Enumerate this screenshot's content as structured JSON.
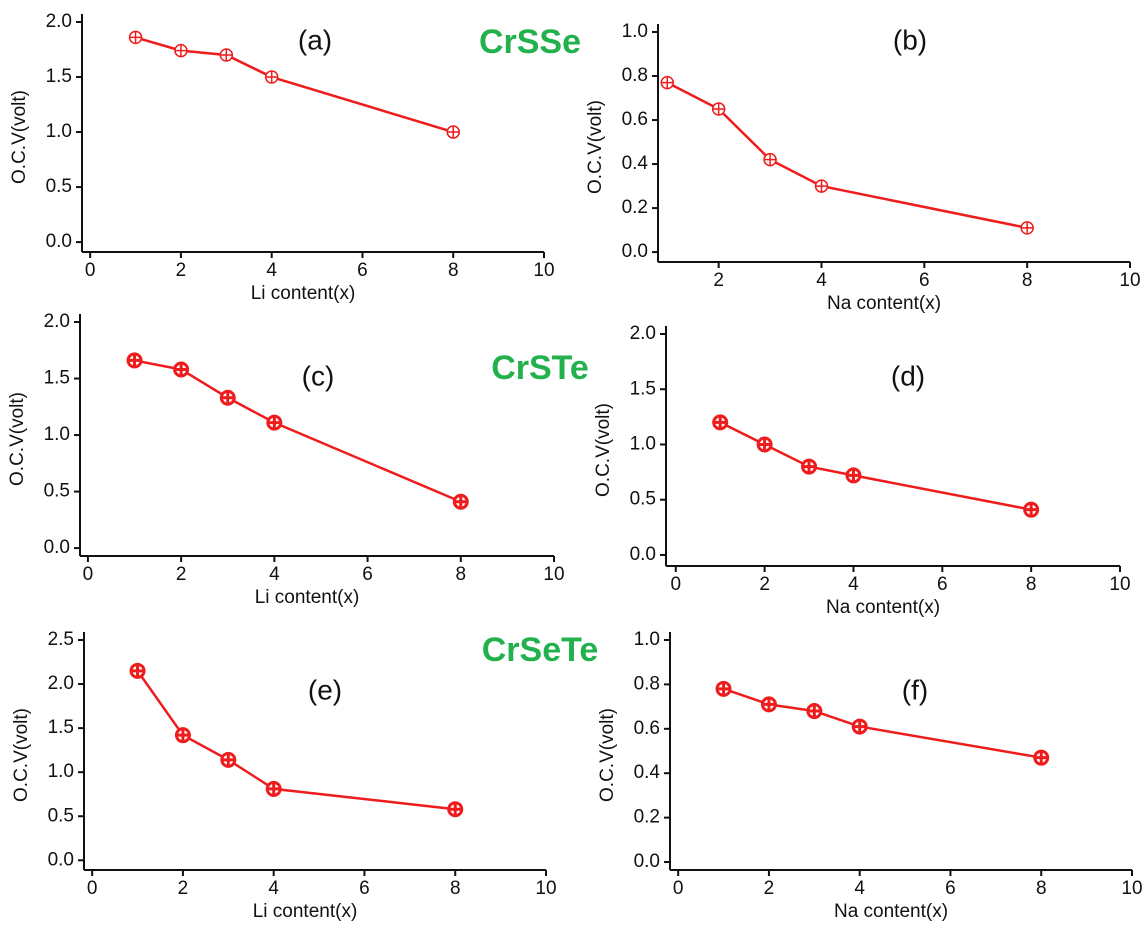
{
  "chart_data": [
    {
      "type": "line",
      "title": "(a)",
      "annotation": "CrSSe",
      "x_label": "Li content(x)",
      "y_label": "O.C.V(volt)",
      "color": "#ee1c1c",
      "x": [
        1,
        2,
        3,
        4,
        8
      ],
      "values": [
        1.86,
        1.74,
        1.7,
        1.5,
        1.0
      ],
      "xlim": [
        -0.18,
        10
      ],
      "ylim": [
        -0.09,
        2.0
      ],
      "xticks": [
        0,
        2,
        4,
        6,
        8,
        10
      ],
      "yticks": [
        {
          "value": 0,
          "label": "0.0"
        },
        {
          "value": 0.5,
          "label": "0.5"
        },
        {
          "value": 1,
          "label": "1.0"
        },
        {
          "value": 1.5,
          "label": "1.5"
        },
        {
          "value": 2,
          "label": "2.0"
        }
      ]
    },
    {
      "type": "line",
      "title": "(b)",
      "x_label": "Na content(x)",
      "y_label": "O.C.V(volt)",
      "color": "#ee1c1c",
      "x": [
        1,
        2,
        3,
        4,
        8
      ],
      "values": [
        0.77,
        0.65,
        0.42,
        0.3,
        0.11
      ],
      "xlim": [
        0.82,
        10
      ],
      "ylim": [
        -0.045,
        1.0
      ],
      "xticks": [
        2,
        4,
        6,
        8,
        10
      ],
      "yticks": [
        {
          "value": 0,
          "label": "0.0"
        },
        {
          "value": 0.2,
          "label": "0.2"
        },
        {
          "value": 0.4,
          "label": "0.4"
        },
        {
          "value": 0.6,
          "label": "0.6"
        },
        {
          "value": 0.8,
          "label": "0.8"
        },
        {
          "value": 1,
          "label": "1.0"
        }
      ]
    },
    {
      "type": "line",
      "title": "(c)",
      "annotation": "CrSTe",
      "x_label": "Li content(x)",
      "y_label": "O.C.V(volt)",
      "color": "#ee1c1c",
      "x": [
        1,
        2,
        3,
        4,
        8
      ],
      "values": [
        1.66,
        1.58,
        1.33,
        1.11,
        0.41
      ],
      "xlim": [
        -0.17,
        10
      ],
      "ylim": [
        -0.07,
        2.0
      ],
      "xticks": [
        0,
        2,
        4,
        6,
        8,
        10
      ],
      "yticks": [
        {
          "value": 0,
          "label": "0.0"
        },
        {
          "value": 0.5,
          "label": "0.5"
        },
        {
          "value": 1,
          "label": "1.0"
        },
        {
          "value": 1.5,
          "label": "1.5"
        },
        {
          "value": 2,
          "label": "2.0"
        }
      ]
    },
    {
      "type": "line",
      "title": "(d)",
      "x_label": "Na content(x)",
      "y_label": "O.C.V(volt)",
      "color": "#ee1c1c",
      "x": [
        1,
        2,
        3,
        4,
        8
      ],
      "values": [
        1.2,
        1.0,
        0.8,
        0.72,
        0.41
      ],
      "xlim": [
        -0.22,
        10
      ],
      "ylim": [
        -0.1,
        2.0
      ],
      "xticks": [
        0,
        2,
        4,
        6,
        8,
        10
      ],
      "yticks": [
        {
          "value": 0,
          "label": "0.0"
        },
        {
          "value": 0.5,
          "label": "0.5"
        },
        {
          "value": 1,
          "label": "1.0"
        },
        {
          "value": 1.5,
          "label": "1.5"
        },
        {
          "value": 2,
          "label": "2.0"
        }
      ]
    },
    {
      "type": "line",
      "title": "(e)",
      "annotation": "CrSeTe",
      "x_label": "Li content(x)",
      "y_label": "O.C.V(volt)",
      "color": "#ee1c1c",
      "x": [
        1,
        2,
        3,
        4,
        8
      ],
      "values": [
        2.15,
        1.42,
        1.14,
        0.81,
        0.58
      ],
      "xlim": [
        -0.18,
        10
      ],
      "ylim": [
        -0.11,
        2.5
      ],
      "xticks": [
        0,
        2,
        4,
        6,
        8,
        10
      ],
      "yticks": [
        {
          "value": 0,
          "label": "0.0"
        },
        {
          "value": 0.5,
          "label": "0.5"
        },
        {
          "value": 1,
          "label": "1.0"
        },
        {
          "value": 1.5,
          "label": "1.5"
        },
        {
          "value": 2,
          "label": "2.0"
        },
        {
          "value": 2.5,
          "label": "2.5"
        }
      ]
    },
    {
      "type": "line",
      "title": "(f)",
      "x_label": "Na content(x)",
      "y_label": "O.C.V(volt)",
      "color": "#ee1c1c",
      "x": [
        1,
        2,
        3,
        4,
        8
      ],
      "values": [
        0.78,
        0.71,
        0.68,
        0.61,
        0.47
      ],
      "xlim": [
        -0.18,
        10
      ],
      "ylim": [
        -0.036,
        1.0
      ],
      "xticks": [
        0,
        2,
        4,
        6,
        8,
        10
      ],
      "yticks": [
        {
          "value": 0,
          "label": "0.0"
        },
        {
          "value": 0.2,
          "label": "0.2"
        },
        {
          "value": 0.4,
          "label": "0.4"
        },
        {
          "value": 0.6,
          "label": "0.6"
        },
        {
          "value": 0.8,
          "label": "0.8"
        },
        {
          "value": 1,
          "label": "1.0"
        }
      ]
    }
  ]
}
